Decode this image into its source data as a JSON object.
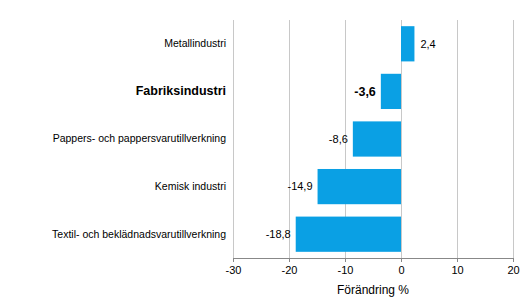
{
  "chart_data": {
    "type": "bar",
    "orientation": "horizontal",
    "categories": [
      "Metallindustri",
      "Fabriksindustri",
      "Pappers- och pappersvarutillverkning",
      "Kemisk industri",
      "Textil- och beklädnadsvarutillverkning"
    ],
    "values": [
      2.4,
      -3.6,
      -8.6,
      -14.9,
      -18.8
    ],
    "value_labels": [
      "2,4",
      "-3,6",
      "-8,6",
      "-14,9",
      "-18,8"
    ],
    "data_labels": true,
    "color": "#0aa0e4",
    "x_label": "Förändring %",
    "xlim": [
      -30,
      20
    ],
    "xticks": [
      -30,
      -20,
      -10,
      0,
      10,
      20
    ],
    "grid": true
  }
}
